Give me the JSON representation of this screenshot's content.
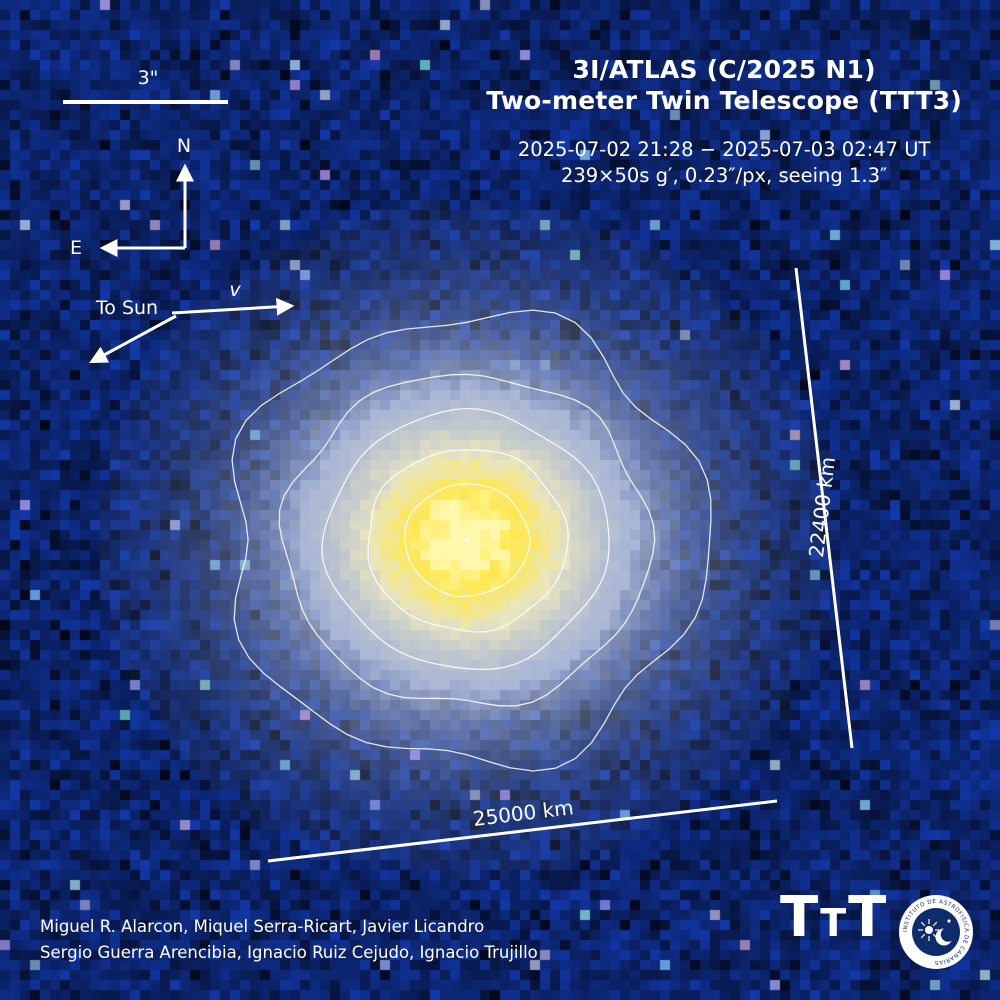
{
  "colors": {
    "background": "#0c246c",
    "comet_haze": "#a9b6d6",
    "comet_pale": "#eae6c0",
    "comet_core": "#ffe84f",
    "comet_peak": "#fff9b0",
    "contour_line": "#ffffff",
    "text": "#ffffff"
  },
  "header": {
    "title_line1": "3I/ATLAS (C/2025 N1)",
    "title_line2": "Two-meter Twin Telescope (TTT3)",
    "obs_line1": "2025-07-02 21:28 − 2025-07-03 02:47 UT",
    "obs_line2": "239×50s g′, 0.23″/px, seeing 1.3″"
  },
  "annotations": {
    "scale_bar_label": "3\"",
    "north_label": "N",
    "east_label": "E",
    "to_sun_label": "To Sun",
    "velocity_label": "v",
    "vertical_scale_label": "22400 km",
    "horizontal_scale_label": "25000 km"
  },
  "credits": {
    "line1": "Miguel R. Alarcon, Miquel Serra-Ricart, Javier Licandro",
    "line2": "Sergio Guerra Arencibia, Ignacio Ruiz Cejudo, Ignacio Trujillo"
  },
  "logos": {
    "ttt_letters": [
      "T",
      "T",
      "T"
    ],
    "iac_ring_text": "INSTITUTO DE ASTROFISICA DE CANARIAS"
  }
}
